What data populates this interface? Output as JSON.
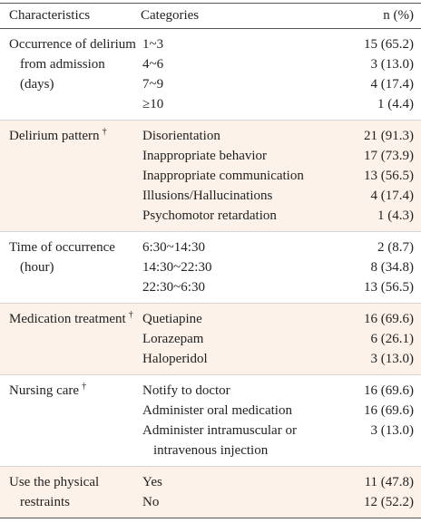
{
  "table": {
    "header": [
      "Characteristics",
      "Categories",
      "n (%)"
    ],
    "groups": [
      {
        "characteristic": "Occurrence of delirium from admission (days)",
        "rows": [
          [
            "1~3",
            "15 (65.2)"
          ],
          [
            "4~6",
            "3 (13.0)"
          ],
          [
            "7~9",
            "4 (17.4)"
          ],
          [
            "≥10",
            "1 (4.4)"
          ]
        ]
      },
      {
        "characteristic": "Delirium pattern",
        "mark": "†",
        "rows": [
          [
            "Disorientation",
            "21 (91.3)"
          ],
          [
            "Inappropriate behavior",
            "17 (73.9)"
          ],
          [
            "Inappropriate communication",
            "13 (56.5)"
          ],
          [
            "Illusions/Hallucinations",
            "4 (17.4)"
          ],
          [
            "Psychomotor retardation",
            "1 (4.3)"
          ]
        ]
      },
      {
        "characteristic": "Time of occurrence (hour)",
        "rows": [
          [
            "6:30~14:30",
            "2 (8.7)"
          ],
          [
            "14:30~22:30",
            "8 (34.8)"
          ],
          [
            "22:30~6:30",
            "13 (56.5)"
          ]
        ]
      },
      {
        "characteristic": "Medication treatment",
        "mark": "†",
        "rows": [
          [
            "Quetiapine",
            "16 (69.6)"
          ],
          [
            "Lorazepam",
            "6 (26.1)"
          ],
          [
            "Haloperidol",
            "3 (13.0)"
          ]
        ]
      },
      {
        "characteristic": "Nursing care",
        "mark": "†",
        "rows": [
          [
            "Notify to doctor",
            "16 (69.6)"
          ],
          [
            "Administer oral medication",
            "16 (69.6)"
          ],
          [
            "Administer intramuscular or intravenous injection",
            "3 (13.0)"
          ]
        ]
      },
      {
        "characteristic": "Use the physical restraints",
        "rows": [
          [
            "Yes",
            "11 (47.8)"
          ],
          [
            "No",
            "12 (52.2)"
          ]
        ]
      }
    ]
  }
}
